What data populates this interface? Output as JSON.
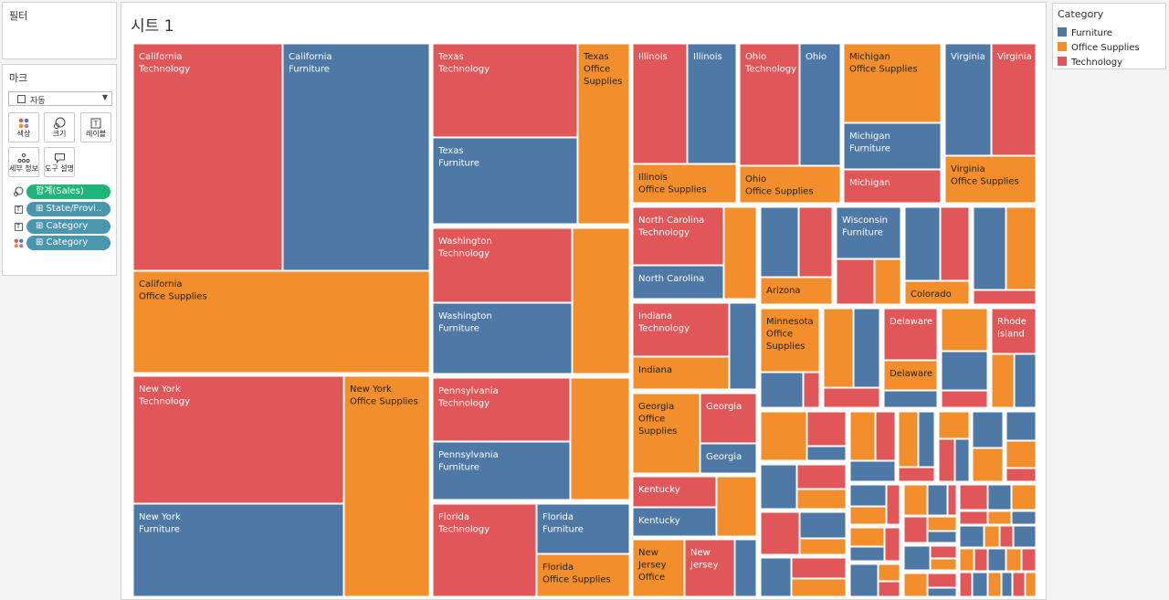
{
  "filter_panel": {
    "title": "필터"
  },
  "marks_panel": {
    "title": "마크",
    "mark_type": "자동",
    "buttons": [
      {
        "label": "색상",
        "icon": "color-dots-icon"
      },
      {
        "label": "크기",
        "icon": "size-icon"
      },
      {
        "label": "레이블",
        "icon": "label-icon"
      },
      {
        "label": "세부 정보",
        "icon": "detail-icon"
      },
      {
        "label": "도구 설명",
        "icon": "tooltip-icon"
      }
    ],
    "fields": [
      {
        "text": "합계(Sales)",
        "role": "size",
        "icon": "size-icon",
        "color": "#1fb579"
      },
      {
        "text": "⊞ State/Provi..",
        "role": "label",
        "icon": "label-icon",
        "color": "#4a97ad"
      },
      {
        "text": "⊞ Category",
        "role": "label",
        "icon": "label-icon",
        "color": "#4a97ad"
      },
      {
        "text": "⊞ Category",
        "role": "color",
        "icon": "color-dots-icon",
        "color": "#4a97ad"
      }
    ]
  },
  "sheet": {
    "title": "시트 1"
  },
  "legend": {
    "title": "Category",
    "items": [
      {
        "label": "Furniture",
        "color": "#4e79a7"
      },
      {
        "label": "Office Supplies",
        "color": "#f28e2b"
      },
      {
        "label": "Technology",
        "color": "#e15759"
      }
    ]
  },
  "chart_data": {
    "type": "treemap",
    "size_measure": "합계(Sales)",
    "labels": [
      "State/Province",
      "Category"
    ],
    "color_by": "Category",
    "categories": [
      "Furniture",
      "Office Supplies",
      "Technology"
    ],
    "colors": {
      "Furniture": "#4e79a7",
      "Office Supplies": "#f28e2b",
      "Technology": "#e15759"
    },
    "labeled_tiles": [
      {
        "state": "California",
        "category": "Technology"
      },
      {
        "state": "California",
        "category": "Furniture"
      },
      {
        "state": "California",
        "category": "Office Supplies"
      },
      {
        "state": "New York",
        "category": "Technology"
      },
      {
        "state": "New York",
        "category": "Office Supplies"
      },
      {
        "state": "New York",
        "category": "Furniture"
      },
      {
        "state": "Texas",
        "category": "Technology"
      },
      {
        "state": "Texas",
        "category": "Office Supplies"
      },
      {
        "state": "Texas",
        "category": "Furniture"
      },
      {
        "state": "Washington",
        "category": "Technology"
      },
      {
        "state": "Washington",
        "category": "Furniture"
      },
      {
        "state": "Pennsylvania",
        "category": "Technology"
      },
      {
        "state": "Pennsylvania",
        "category": "Furniture"
      },
      {
        "state": "Florida",
        "category": "Technology"
      },
      {
        "state": "Florida",
        "category": "Furniture"
      },
      {
        "state": "Florida",
        "category": "Office Supplies"
      },
      {
        "state": "Illinois",
        "category": "Technology"
      },
      {
        "state": "Illinois",
        "category": "Furniture"
      },
      {
        "state": "Illinois",
        "category": "Office Supplies"
      },
      {
        "state": "Ohio",
        "category": "Technology"
      },
      {
        "state": "Ohio",
        "category": "Furniture"
      },
      {
        "state": "Ohio",
        "category": "Office Supplies"
      },
      {
        "state": "Michigan",
        "category": "Office Supplies"
      },
      {
        "state": "Michigan",
        "category": "Furniture"
      },
      {
        "state": "Michigan",
        "category": "Technology"
      },
      {
        "state": "Virginia",
        "category": "Furniture"
      },
      {
        "state": "Virginia",
        "category": "Technology"
      },
      {
        "state": "Virginia",
        "category": "Office Supplies"
      },
      {
        "state": "North Carolina",
        "category": "Technology"
      },
      {
        "state": "North Carolina",
        "category": "Furniture"
      },
      {
        "state": "Arizona",
        "category": "Office Supplies"
      },
      {
        "state": "Wisconsin",
        "category": "Furniture"
      },
      {
        "state": "Colorado",
        "category": "Office Supplies"
      },
      {
        "state": "Indiana",
        "category": "Technology"
      },
      {
        "state": "Indiana",
        "category": "Office Supplies"
      },
      {
        "state": "Minnesota",
        "category": "Office Supplies"
      },
      {
        "state": "Delaware",
        "category": "Technology"
      },
      {
        "state": "Delaware",
        "category": "Office Supplies"
      },
      {
        "state": "Rhode Island",
        "category": "Technology"
      },
      {
        "state": "Georgia",
        "category": "Office Supplies"
      },
      {
        "state": "Georgia",
        "category": "Technology"
      },
      {
        "state": "Georgia",
        "category": "Furniture"
      },
      {
        "state": "Kentucky",
        "category": "Technology"
      },
      {
        "state": "Kentucky",
        "category": "Furniture"
      },
      {
        "state": "New Jersey",
        "category": "Office Supplies"
      },
      {
        "state": "New Jersey",
        "category": "Technology"
      }
    ]
  }
}
